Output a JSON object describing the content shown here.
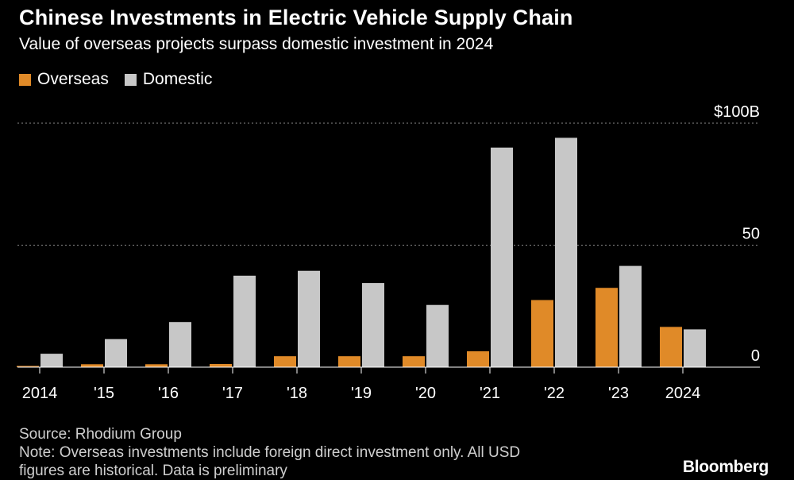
{
  "header": {
    "title": "Chinese Investments in Electric Vehicle Supply Chain",
    "subtitle": "Value of overseas projects surpass domestic investment in 2024"
  },
  "legend": {
    "items": [
      {
        "label": "Overseas",
        "color": "#e08a28"
      },
      {
        "label": "Domestic",
        "color": "#c7c7c7"
      }
    ]
  },
  "chart_data": {
    "type": "bar",
    "title": "Chinese Investments in Electric Vehicle Supply Chain",
    "subtitle": "Value of overseas projects surpass domestic investment in 2024",
    "categories": [
      "2014",
      "'15",
      "'16",
      "'17",
      "'18",
      "'19",
      "'20",
      "'21",
      "'22",
      "'23",
      "2024"
    ],
    "series": [
      {
        "name": "Overseas",
        "color": "#e08a28",
        "values": [
          0.5,
          1.2,
          1.2,
          1.3,
          4.5,
          4.5,
          4.5,
          6.5,
          27.5,
          32.5,
          16.5
        ]
      },
      {
        "name": "Domestic",
        "color": "#c7c7c7",
        "values": [
          5.5,
          11.5,
          18.5,
          37.5,
          39.5,
          34.5,
          25.5,
          90,
          94,
          41.5,
          15.5
        ]
      }
    ],
    "ylim": [
      0,
      100
    ],
    "yticks": [
      {
        "value": 0,
        "label": "0"
      },
      {
        "value": 50,
        "label": "50"
      },
      {
        "value": 100,
        "label": "$100B"
      }
    ],
    "xlabel": "",
    "ylabel": "",
    "grid": "dotted horizontal at 50 and 100",
    "legend_position": "top-left"
  },
  "footer": {
    "source": "Source: Rhodium Group",
    "note_line1": "Note: Overseas investments include foreign direct investment only. All USD",
    "note_line2": "figures are historical. Data is preliminary",
    "brand": "Bloomberg"
  }
}
